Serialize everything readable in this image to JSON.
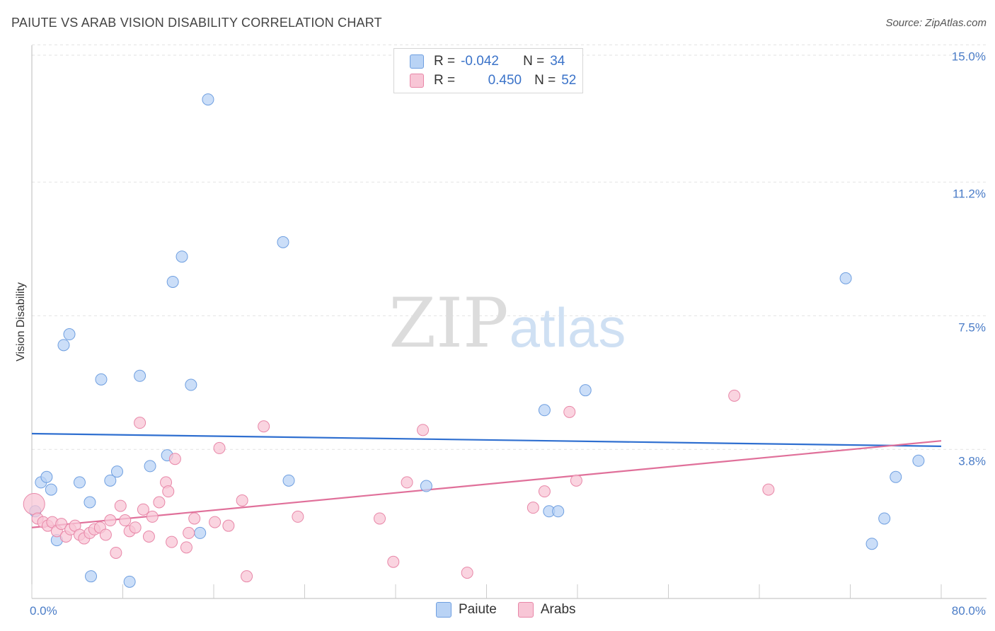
{
  "title": "PAIUTE VS ARAB VISION DISABILITY CORRELATION CHART",
  "source": "Source: ZipAtlas.com",
  "watermark": {
    "zip": "ZIP",
    "atlas": "atlas"
  },
  "colors": {
    "paiute": "#6f9fe0",
    "paiute_fill": "#b9d3f5",
    "arabs": "#e887a8",
    "arabs_fill": "#f8c6d6",
    "paiute_line": "#2f6fd0",
    "arabs_line": "#e0709a"
  },
  "legend": {
    "rows": [
      {
        "r_label": "R =",
        "r_value": "-0.042",
        "n_label": "N =",
        "n_value": "34"
      },
      {
        "r_label": "R =",
        "r_value": "0.450",
        "n_label": "N =",
        "n_value": "52"
      }
    ]
  },
  "bottom_legend": [
    "Paiute",
    "Arabs"
  ],
  "chart_data": {
    "type": "scatter",
    "xlabel": "",
    "ylabel": "Vision Disability",
    "xlim": [
      0,
      80
    ],
    "ylim": [
      0.3,
      15.3
    ],
    "x_tick_labels": [
      "0.0%",
      "80.0%"
    ],
    "y_ticks": [
      3.8,
      7.5,
      11.2,
      15.0
    ],
    "y_tick_labels": [
      "3.8%",
      "7.5%",
      "11.2%",
      "15.0%"
    ],
    "grid": "horizontal dashed",
    "legend_position": "top-center",
    "series": [
      {
        "name": "Paiute",
        "trend": {
          "y_at_x0": 4.55,
          "y_at_x80": 4.2
        },
        "points": [
          [
            0.3,
            2.4
          ],
          [
            0.8,
            3.2
          ],
          [
            1.3,
            3.35
          ],
          [
            1.7,
            3.0
          ],
          [
            2.2,
            1.6
          ],
          [
            2.8,
            7.0
          ],
          [
            3.3,
            7.3
          ],
          [
            4.2,
            3.2
          ],
          [
            5.1,
            2.65
          ],
          [
            5.2,
            0.6
          ],
          [
            6.1,
            6.05
          ],
          [
            6.9,
            3.25
          ],
          [
            7.5,
            3.5
          ],
          [
            8.6,
            0.45
          ],
          [
            9.5,
            6.15
          ],
          [
            10.4,
            3.65
          ],
          [
            11.9,
            3.95
          ],
          [
            12.4,
            8.75
          ],
          [
            13.2,
            9.45
          ],
          [
            14.0,
            5.9
          ],
          [
            14.8,
            1.8
          ],
          [
            15.5,
            13.8
          ],
          [
            22.1,
            9.85
          ],
          [
            22.6,
            3.25
          ],
          [
            34.7,
            3.1
          ],
          [
            45.1,
            5.2
          ],
          [
            45.5,
            2.4
          ],
          [
            46.3,
            2.4
          ],
          [
            48.7,
            5.75
          ],
          [
            71.6,
            8.85
          ],
          [
            73.9,
            1.5
          ],
          [
            75.0,
            2.2
          ],
          [
            76.0,
            3.35
          ],
          [
            78.0,
            3.8
          ]
        ]
      },
      {
        "name": "Arabs",
        "trend": {
          "y_at_x0": 1.95,
          "y_at_x80": 4.35
        },
        "points": [
          [
            0.2,
            2.6
          ],
          [
            0.5,
            2.2
          ],
          [
            1.0,
            2.1
          ],
          [
            1.4,
            2.0
          ],
          [
            1.8,
            2.1
          ],
          [
            2.2,
            1.85
          ],
          [
            2.6,
            2.05
          ],
          [
            3.0,
            1.7
          ],
          [
            3.4,
            1.9
          ],
          [
            3.8,
            2.0
          ],
          [
            4.2,
            1.75
          ],
          [
            4.6,
            1.65
          ],
          [
            5.1,
            1.8
          ],
          [
            5.5,
            1.9
          ],
          [
            6.0,
            1.95
          ],
          [
            6.5,
            1.75
          ],
          [
            6.9,
            2.15
          ],
          [
            7.4,
            1.25
          ],
          [
            7.8,
            2.55
          ],
          [
            8.2,
            2.15
          ],
          [
            8.6,
            1.85
          ],
          [
            9.1,
            1.95
          ],
          [
            9.5,
            4.85
          ],
          [
            9.8,
            2.45
          ],
          [
            10.3,
            1.7
          ],
          [
            10.6,
            2.25
          ],
          [
            11.2,
            2.65
          ],
          [
            11.8,
            3.2
          ],
          [
            12.0,
            2.95
          ],
          [
            12.3,
            1.55
          ],
          [
            12.6,
            3.85
          ],
          [
            13.6,
            1.4
          ],
          [
            13.8,
            1.8
          ],
          [
            14.3,
            2.2
          ],
          [
            16.1,
            2.1
          ],
          [
            16.5,
            4.15
          ],
          [
            17.3,
            2.0
          ],
          [
            18.5,
            2.7
          ],
          [
            18.9,
            0.6
          ],
          [
            20.4,
            4.75
          ],
          [
            23.4,
            2.25
          ],
          [
            30.6,
            2.2
          ],
          [
            31.8,
            1.0
          ],
          [
            33.0,
            3.2
          ],
          [
            34.4,
            4.65
          ],
          [
            38.3,
            0.7
          ],
          [
            44.1,
            2.5
          ],
          [
            45.1,
            2.95
          ],
          [
            47.3,
            5.15
          ],
          [
            47.9,
            3.25
          ],
          [
            64.8,
            3.0
          ],
          [
            61.8,
            5.6
          ]
        ]
      }
    ]
  }
}
